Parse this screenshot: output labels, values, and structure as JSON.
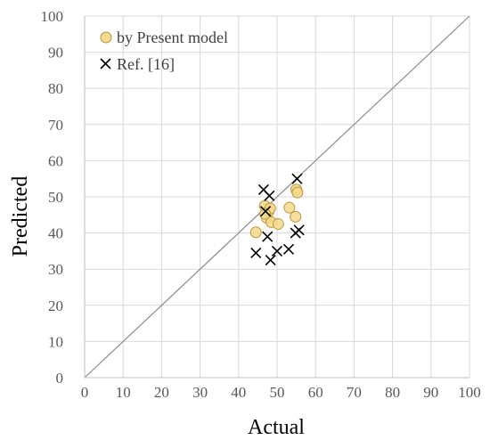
{
  "chart_data": {
    "type": "scatter",
    "xlabel": "Actual",
    "ylabel": "Predicted",
    "xlim": [
      0,
      100
    ],
    "ylim": [
      0,
      100
    ],
    "xticks": [
      "0",
      "10",
      "20",
      "30",
      "40",
      "50",
      "60",
      "70",
      "80",
      "90",
      "100"
    ],
    "yticks": [
      "0",
      "10",
      "20",
      "30",
      "40",
      "50",
      "60",
      "70",
      "80",
      "90",
      "100"
    ],
    "grid": true,
    "legend_position": "top-left",
    "reference_line": "y=x",
    "series": [
      {
        "name": "by Present model",
        "marker": "circle",
        "color": "#f5d98c",
        "edge_color": "#b8963a",
        "points": [
          [
            44.5,
            40.2
          ],
          [
            46.8,
            47.5
          ],
          [
            47.3,
            44.2
          ],
          [
            47.8,
            46.0
          ],
          [
            48.2,
            46.8
          ],
          [
            48.5,
            43.0
          ],
          [
            50.3,
            42.5
          ],
          [
            53.2,
            47.0
          ],
          [
            54.8,
            44.5
          ],
          [
            55.0,
            52.0
          ],
          [
            55.3,
            51.2
          ],
          [
            46.9,
            45.3
          ]
        ]
      },
      {
        "name": "Ref. [16]",
        "marker": "x",
        "color": "#000000",
        "points": [
          [
            44.5,
            34.5
          ],
          [
            46.5,
            52.0
          ],
          [
            47.0,
            46.0
          ],
          [
            47.5,
            39.0
          ],
          [
            48.0,
            50.3
          ],
          [
            48.3,
            32.5
          ],
          [
            50.0,
            35.0
          ],
          [
            53.0,
            35.5
          ],
          [
            54.8,
            40.0
          ],
          [
            55.2,
            55.0
          ],
          [
            55.7,
            40.8
          ]
        ]
      }
    ]
  }
}
